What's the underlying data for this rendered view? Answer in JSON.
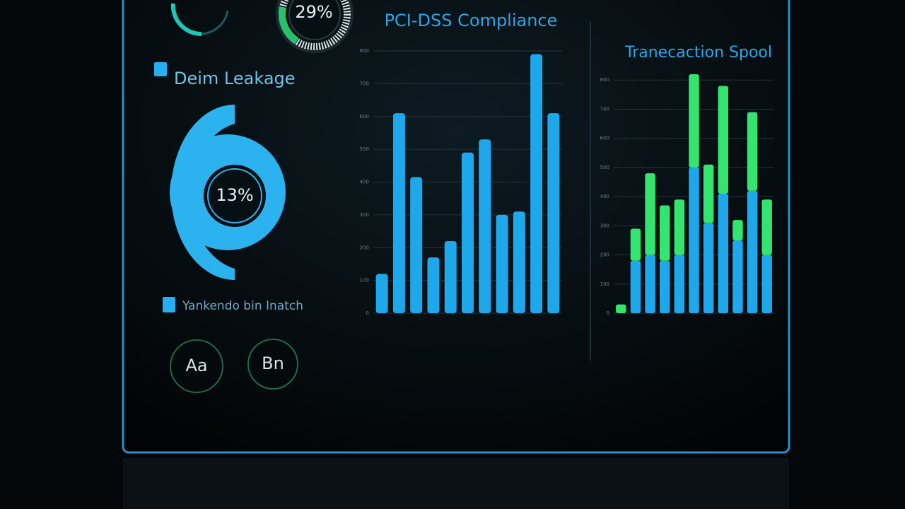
{
  "widgets": {
    "gauge_label": "29%",
    "legend_1": "Deim Leakage",
    "donut_label": "13%",
    "legend_2": "Yankendo bin Inatch",
    "button_a": "Aa",
    "button_b": "Bn"
  },
  "chart_data": [
    {
      "type": "bar",
      "title": "PCI-DSS Compliance",
      "categories": [
        null,
        null,
        null,
        null,
        null,
        null,
        null,
        null,
        null,
        null,
        null
      ],
      "values": [
        120,
        610,
        415,
        170,
        220,
        490,
        530,
        300,
        310,
        790,
        610
      ],
      "color": "#1ea8ec",
      "ylim": [
        0,
        800
      ],
      "yticks": [
        0,
        100,
        200,
        300,
        400,
        500,
        600,
        700,
        800
      ],
      "grid": true
    },
    {
      "type": "stacked-bar",
      "title": "Tranecaction Spool",
      "categories": [
        null,
        null,
        null,
        null,
        null,
        null,
        null,
        null,
        null,
        null,
        null
      ],
      "series": [
        {
          "color": "#1ea8ec",
          "values": [
            0,
            180,
            200,
            180,
            200,
            500,
            310,
            410,
            250,
            420,
            200
          ]
        },
        {
          "color": "#33e46e",
          "values": [
            30,
            110,
            280,
            190,
            190,
            320,
            200,
            370,
            70,
            270,
            190
          ]
        }
      ],
      "ylim": [
        0,
        900
      ],
      "yticks": [
        0,
        100,
        200,
        300,
        400,
        500,
        600,
        700,
        800
      ],
      "grid": true
    }
  ]
}
